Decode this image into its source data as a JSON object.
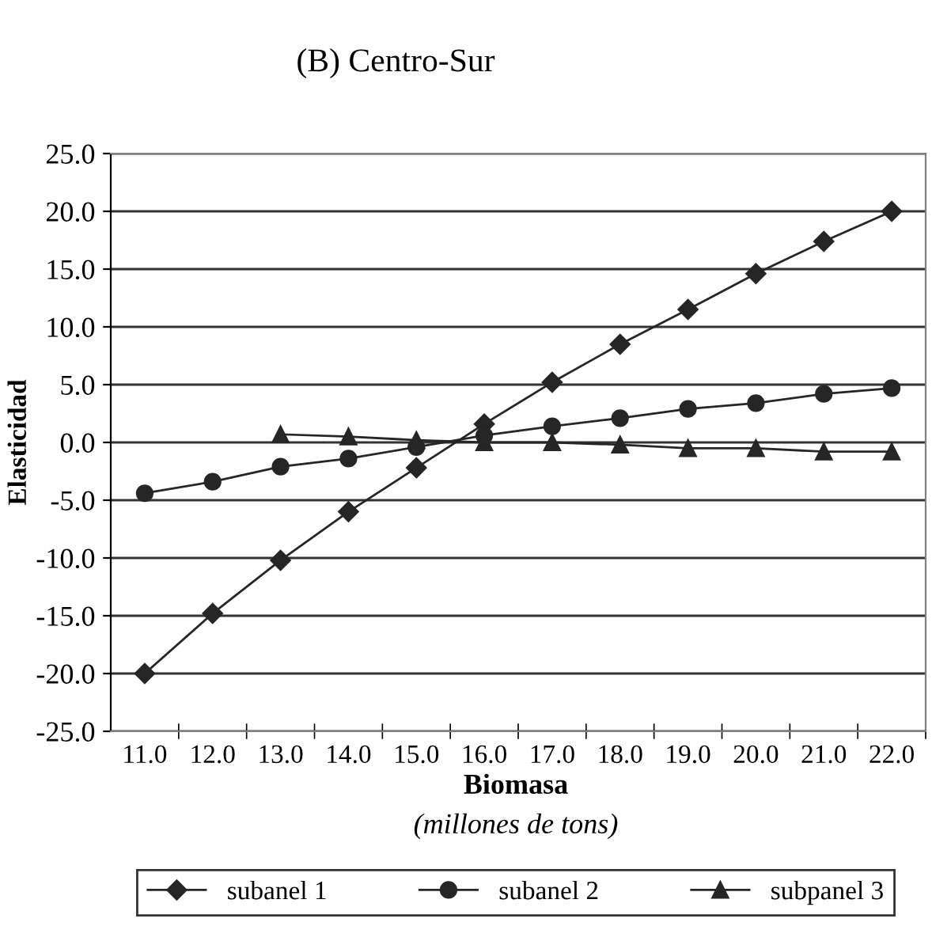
{
  "chart_data": {
    "type": "line",
    "title": "(B) Centro-Sur",
    "xlabel": "Biomasa",
    "ylabel": "Elasticidad",
    "annotations": [
      "(millones de tons)"
    ],
    "categories": [
      "11.0",
      "12.0",
      "13.0",
      "14.0",
      "15.0",
      "16.0",
      "17.0",
      "18.0",
      "19.0",
      "20.0",
      "21.0",
      "22.0"
    ],
    "series": [
      {
        "name": "subanel 1",
        "color": "#262626",
        "marker": "diamond",
        "values": [
          -20.0,
          -14.8,
          -10.2,
          -6.0,
          -2.2,
          1.6,
          5.2,
          8.5,
          11.5,
          14.6,
          17.4,
          20.0
        ]
      },
      {
        "name": "subanel 2",
        "color": "#262626",
        "marker": "circle",
        "values": [
          -4.4,
          -3.4,
          -2.1,
          -1.4,
          -0.4,
          0.6,
          1.4,
          2.1,
          2.9,
          3.4,
          4.2,
          4.7
        ]
      },
      {
        "name": "subpanel 3",
        "color": "#262626",
        "marker": "triangle",
        "values": [
          null,
          null,
          0.7,
          0.5,
          0.2,
          0.0,
          0.0,
          -0.2,
          -0.5,
          -0.5,
          -0.8,
          -0.8
        ]
      }
    ],
    "ylim": [
      -25,
      25
    ],
    "yticks": [
      {
        "value": -25,
        "label": "-25.0"
      },
      {
        "value": -20,
        "label": "-20.0"
      },
      {
        "value": -15,
        "label": "-15.0"
      },
      {
        "value": -10,
        "label": "-10.0"
      },
      {
        "value": -5,
        "label": "-5.0"
      },
      {
        "value": 0,
        "label": "0.0"
      },
      {
        "value": 5,
        "label": "5.0"
      },
      {
        "value": 10,
        "label": "10.0"
      },
      {
        "value": 15,
        "label": "15.0"
      },
      {
        "value": 20,
        "label": "20.0"
      },
      {
        "value": 25,
        "label": "25.0"
      }
    ],
    "grid": "y",
    "legend": "bottom",
    "line_style": "solid"
  }
}
